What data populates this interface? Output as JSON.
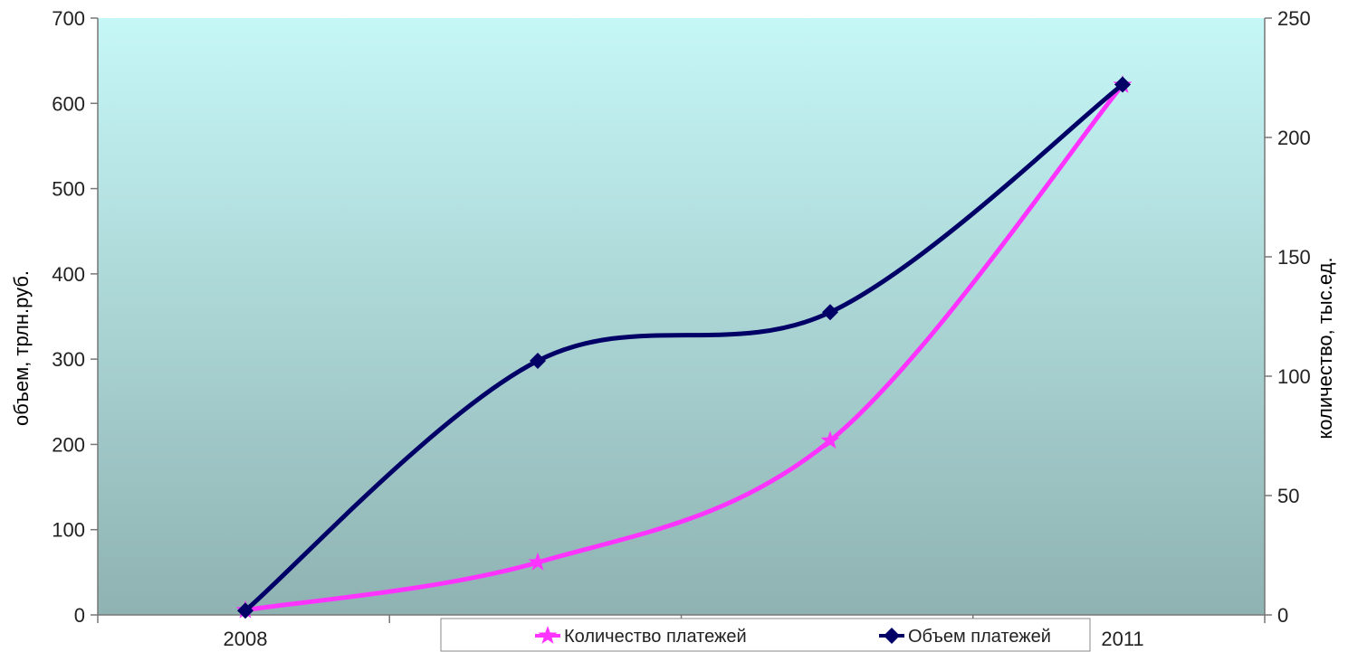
{
  "chart_data": {
    "type": "line",
    "title": "",
    "x": [
      "2008",
      "",
      "",
      "2011"
    ],
    "x_tick_labels": [
      "2008",
      "2011"
    ],
    "y_left": {
      "label": "объем, трлн.руб.",
      "ylim": [
        0,
        700
      ],
      "ticks": [
        0,
        100,
        200,
        300,
        400,
        500,
        600,
        700
      ]
    },
    "y_right": {
      "label": "количество, тыс.ед.",
      "ylim": [
        0,
        250
      ],
      "ticks": [
        0,
        50,
        100,
        150,
        200,
        250
      ]
    },
    "grid": false,
    "legend_position": "bottom-center",
    "series": [
      {
        "name": "Количество платежей",
        "axis": "right",
        "color": "#ff33ff",
        "marker": "star",
        "values": [
          2,
          22,
          73,
          222
        ]
      },
      {
        "name": "Объем платежей",
        "axis": "left",
        "color": "#000066",
        "marker": "diamond",
        "values": [
          5,
          298,
          355,
          622
        ]
      }
    ],
    "colors": {
      "plot_bg_top": "#c6f7f7",
      "plot_bg_bottom": "#8fb2b2"
    }
  }
}
